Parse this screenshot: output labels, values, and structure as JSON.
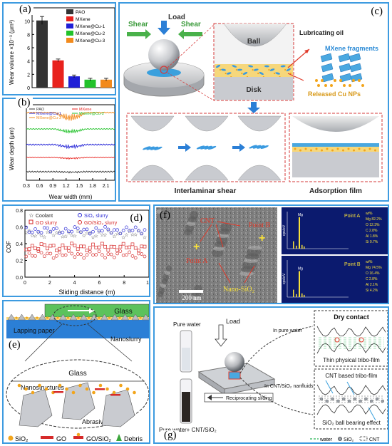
{
  "panels": {
    "a": {
      "label": "(a)",
      "ylabel": "Wear volume ×10⁻³ (μm³)",
      "legend": [
        "PAO",
        "MXene",
        "MXene@Cu-1",
        "MXene@Cu-2",
        "MXene@Cu-3"
      ],
      "yticks": [
        "0",
        "2",
        "4",
        "6",
        "8",
        "10",
        "12"
      ]
    },
    "b": {
      "label": "(b)",
      "ylabel": "Wear depth (μm)",
      "xlabel": "Wear width (mm)",
      "legend": [
        "PAO",
        "MXene",
        "MXene@Cu-1",
        "MXene@Cu-2",
        "MXene@Cu-3"
      ],
      "xticks": [
        "0.3",
        "0.6",
        "0.9",
        "1.2",
        "1.5",
        "1.8",
        "2.1"
      ]
    },
    "c": {
      "label": "(c)",
      "load": "Load",
      "shear_left": "Shear",
      "shear_right": "Shear",
      "ball": "Ball",
      "disk": "Disk",
      "lubricating_oil": "Lubricating oil",
      "mxene_fragments": "MXene fragments",
      "released_cu": "Released Cu NPs",
      "interlaminar": "Interlaminar shear",
      "adsorption": "Adsorption film"
    },
    "d": {
      "label": "(d)",
      "ylabel": "COF",
      "xlabel": "Sliding distance (m)",
      "legend": [
        "Coolant",
        "SiO₂ slurry",
        "GO slurry",
        "GO/SiO₂ slurry"
      ],
      "yticks": [
        "0.0",
        "0.2",
        "0.4",
        "0.6",
        "0.8"
      ],
      "xticks": [
        "0",
        "2",
        "4",
        "6",
        "8",
        "10"
      ]
    },
    "e": {
      "label": "(e)",
      "glass_top": "Glass",
      "lapping_paper": "Lapping paper",
      "nanoslurry": "Nanoslurry",
      "glass_zoom": "Glass",
      "nanostructures": "Nanostructures",
      "abrasives": "Abrasives",
      "legend": [
        "SiO₂",
        "GO",
        "GO/SiO₂",
        "Debris"
      ]
    },
    "f": {
      "label": "(f)",
      "cnt": "CNT",
      "point_a": "Point A",
      "point_b": "Point B",
      "nano_sio2": "Nano-SiO₂",
      "scale": "200 nm",
      "eds_a_title": "Point A",
      "eds_a_lines": [
        "wt%",
        "Mg 82.2%",
        "O 12.3%",
        "C 2.8%",
        "Al 1.8%",
        "Si 0.7%"
      ],
      "eds_b_title": "Point B",
      "eds_b_lines": [
        "wt%",
        "Mg 74.5%",
        "O 16.4%",
        "C 2.8%",
        "Al 2.1%",
        "Si 4.2%"
      ],
      "eds_ylabel": "cps/eV",
      "eds_peak": "Mg"
    },
    "g": {
      "label": "(g)",
      "pure_water": "Pure water",
      "pure_water_cnt": "Pure water+ CNT/SiO₂",
      "load": "Load",
      "in_pure_water": "In pure water",
      "in_cnt": "In CNT/SiO₂ nanfluids",
      "reciprocating": "Reciprocating sliding",
      "dry_contact": "Dry contact",
      "thin_film": "Thin physical tribo-film",
      "cnt_film": "CNT based tribo-film",
      "ball_bearing": "SiO₂ ball bearing effect",
      "legend": [
        "water",
        "SiO₂",
        "CNT"
      ]
    }
  },
  "chart_data": [
    {
      "type": "bar",
      "title": "",
      "categories": [
        "PAO",
        "MXene",
        "MXene@Cu-1",
        "MXene@Cu-2",
        "MXene@Cu-3"
      ],
      "values": [
        10.1,
        4.1,
        1.7,
        1.2,
        1.2
      ],
      "colors": [
        "#333333",
        "#e8221d",
        "#1f1fd6",
        "#22c22a",
        "#f28a1c"
      ],
      "xlabel": "",
      "ylabel": "Wear volume ×10⁻³ (μm³)",
      "ylim": [
        0,
        12
      ]
    },
    {
      "type": "line",
      "title": "",
      "xlabel": "Wear width (mm)",
      "ylabel": "Wear depth (μm)",
      "xlim": [
        0.3,
        2.3
      ],
      "series": [
        {
          "name": "MXene@Cu-3",
          "color": "#f28a1c",
          "offset": 83
        },
        {
          "name": "MXene@Cu-2",
          "color": "#22c22a",
          "offset": 60
        },
        {
          "name": "MXene@Cu-1",
          "color": "#1f1fd6",
          "offset": 38
        },
        {
          "name": "MXene",
          "color": "#e8221d",
          "offset": 20
        },
        {
          "name": "PAO",
          "color": "#333333",
          "offset": 0
        }
      ]
    },
    {
      "type": "scatter",
      "title": "",
      "xlabel": "Sliding distance (m)",
      "ylabel": "COF",
      "xlim": [
        0,
        10
      ],
      "ylim": [
        0,
        0.8
      ],
      "series": [
        {
          "name": "Coolant",
          "color": "#222222",
          "marker": "star",
          "mean": 0.52
        },
        {
          "name": "SiO₂ slurry",
          "color": "#2a2ad6",
          "marker": "circle",
          "mean": 0.56
        },
        {
          "name": "GO slurry",
          "color": "#d62a2a",
          "marker": "square",
          "mean": 0.36
        },
        {
          "name": "GO/SiO₂ slurry",
          "color": "#d62a2a",
          "marker": "circle",
          "mean": 0.27
        }
      ]
    }
  ]
}
